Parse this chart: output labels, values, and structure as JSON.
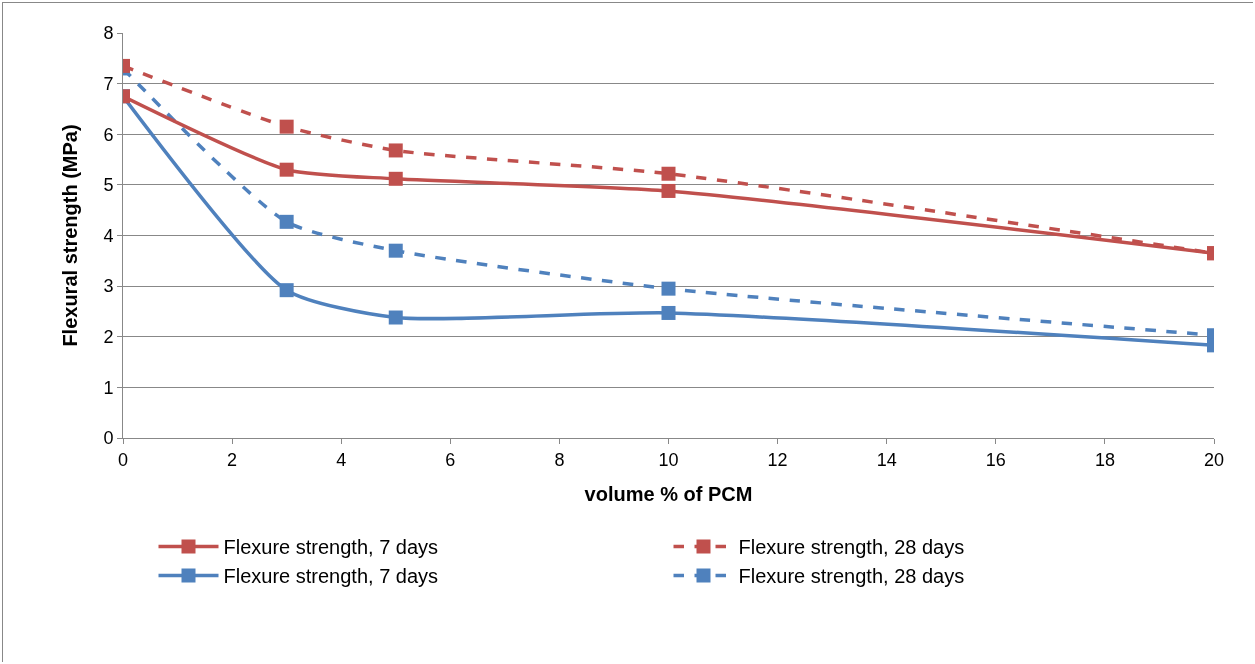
{
  "chart_data": {
    "type": "line",
    "xlabel": "volume % of PCM",
    "ylabel": "Flexural strength (MPa)",
    "x": [
      0,
      3,
      5,
      10,
      20
    ],
    "series": [
      {
        "name": "Flexure strength, 7 days",
        "color": "#c0504d",
        "line_style": "solid",
        "values": [
          6.75,
          5.3,
          5.12,
          4.88,
          3.65
        ]
      },
      {
        "name": "Flexure strength, 28 days",
        "color": "#c0504d",
        "line_style": "dashed",
        "values": [
          7.35,
          6.15,
          5.68,
          5.22,
          3.65
        ]
      },
      {
        "name": "Flexure strength, 7 days",
        "color": "#4f81bd",
        "line_style": "solid",
        "values": [
          6.75,
          2.92,
          2.38,
          2.47,
          1.83
        ]
      },
      {
        "name": "Flexure strength, 28 days",
        "color": "#4f81bd",
        "line_style": "dashed",
        "values": [
          7.3,
          4.27,
          3.7,
          2.95,
          2.03
        ]
      }
    ],
    "xlim": [
      0,
      20
    ],
    "xticks": [
      0,
      2,
      4,
      6,
      8,
      10,
      12,
      14,
      16,
      18,
      20
    ],
    "ylim": [
      0,
      8
    ],
    "yticks": [
      0,
      1,
      2,
      3,
      4,
      5,
      6,
      7,
      8
    ],
    "grid": "y",
    "legend": "bottom",
    "marker": "square"
  }
}
